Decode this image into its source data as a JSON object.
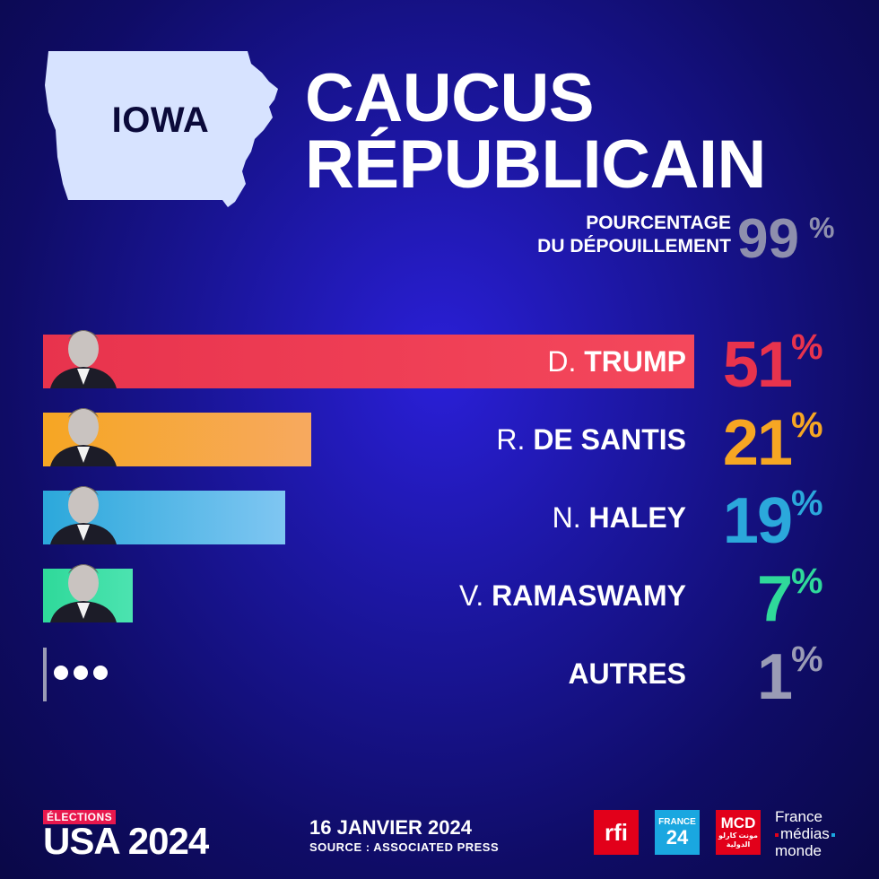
{
  "header": {
    "state": "IOWA",
    "title_line_1": "CAUCUS",
    "title_line_2": "RÉPUBLICAIN",
    "counting_label_1": "POURCENTAGE",
    "counting_label_2": "DU DÉPOUILLEMENT",
    "counting_value": "99",
    "percent_sign": "%"
  },
  "chart_data": {
    "type": "bar",
    "orientation": "horizontal",
    "unit": "%",
    "categories": [
      "D. TRUMP",
      "R. DE SANTIS",
      "N. HALEY",
      "V. RAMASWAMY",
      "AUTRES"
    ],
    "values": [
      51,
      21,
      19,
      7,
      1
    ],
    "xlim": [
      0,
      51
    ]
  },
  "candidates": [
    {
      "initial": "D.",
      "surname": "TRUMP",
      "value": "51",
      "color": "#e8334d",
      "color_end": "#f4485c"
    },
    {
      "initial": "R.",
      "surname": "DE SANTIS",
      "value": "21",
      "color": "#f6a623",
      "color_end": "#f7a95f"
    },
    {
      "initial": "N.",
      "surname": "HALEY",
      "value": "19",
      "color": "#2ba8db",
      "color_end": "#7fc6f2"
    },
    {
      "initial": "V.",
      "surname": "RAMASWAMY",
      "value": "7",
      "color": "#2fd99a",
      "color_end": "#4ce3b0"
    },
    {
      "initial": "",
      "surname": "AUTRES",
      "value": "1",
      "color": "#9a9bb5",
      "color_end": "#9a9bb5"
    }
  ],
  "footer": {
    "elections_tag": "ÉLECTIONS",
    "usa_logo": "USA 2024",
    "date": "16 JANVIER 2024",
    "source": "SOURCE : ASSOCIATED PRESS",
    "logo_rfi": "rfi",
    "logo_f24_top": "FRANCE",
    "logo_f24_num": "24",
    "logo_mcd": "MCD",
    "logo_mcd_ar": "مونت كارلو الدولية",
    "fmm_1": "France",
    "fmm_2": "médias",
    "fmm_3": "monde"
  }
}
